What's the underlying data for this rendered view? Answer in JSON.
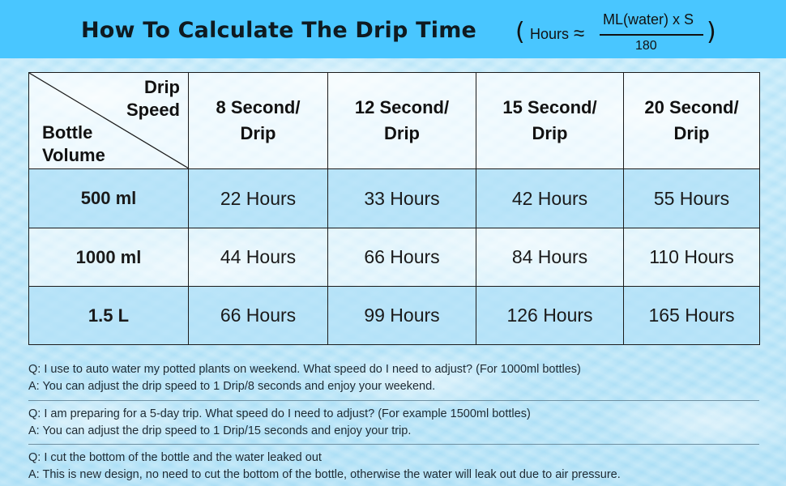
{
  "title": "How To Calculate The Drip Time",
  "formula": {
    "lhs": "Hours",
    "approx": "≈",
    "numerator": "ML(water) x S",
    "denominator": "180",
    "open": "(",
    "close": ")"
  },
  "table": {
    "corner_top": [
      "Drip",
      "Speed"
    ],
    "corner_bottom": [
      "Bottle",
      "Volume"
    ],
    "columns": [
      [
        "8 Second/",
        "Drip"
      ],
      [
        "12 Second/",
        "Drip"
      ],
      [
        "15 Second/",
        "Drip"
      ],
      [
        "20 Second/",
        "Drip"
      ]
    ],
    "rows": [
      {
        "volume": "500 ml",
        "cells": [
          "22 Hours",
          "33 Hours",
          "42 Hours",
          "55 Hours"
        ]
      },
      {
        "volume": "1000 ml",
        "cells": [
          "44 Hours",
          "66 Hours",
          "84 Hours",
          "110 Hours"
        ]
      },
      {
        "volume": "1.5 L",
        "cells": [
          "66 Hours",
          "99 Hours",
          "126 Hours",
          "165 Hours"
        ]
      }
    ]
  },
  "faq": [
    {
      "q": "Q: I use to auto water my potted plants on weekend. What speed do I need to adjust? (For 1000ml bottles)",
      "a": "A: You can adjust the drip speed to 1 Drip/8 seconds and enjoy your weekend."
    },
    {
      "q": "Q: I am preparing for a 5-day trip. What speed do I need to adjust? (For example 1500ml bottles)",
      "a": "A: You can adjust the drip speed to 1 Drip/15 seconds and enjoy your trip."
    },
    {
      "q": "Q: I cut the bottom of the bottle and the water leaked out",
      "a": "A: This is new design, no need to cut the bottom of the bottle, otherwise the water will leak out due to air pressure."
    }
  ]
}
